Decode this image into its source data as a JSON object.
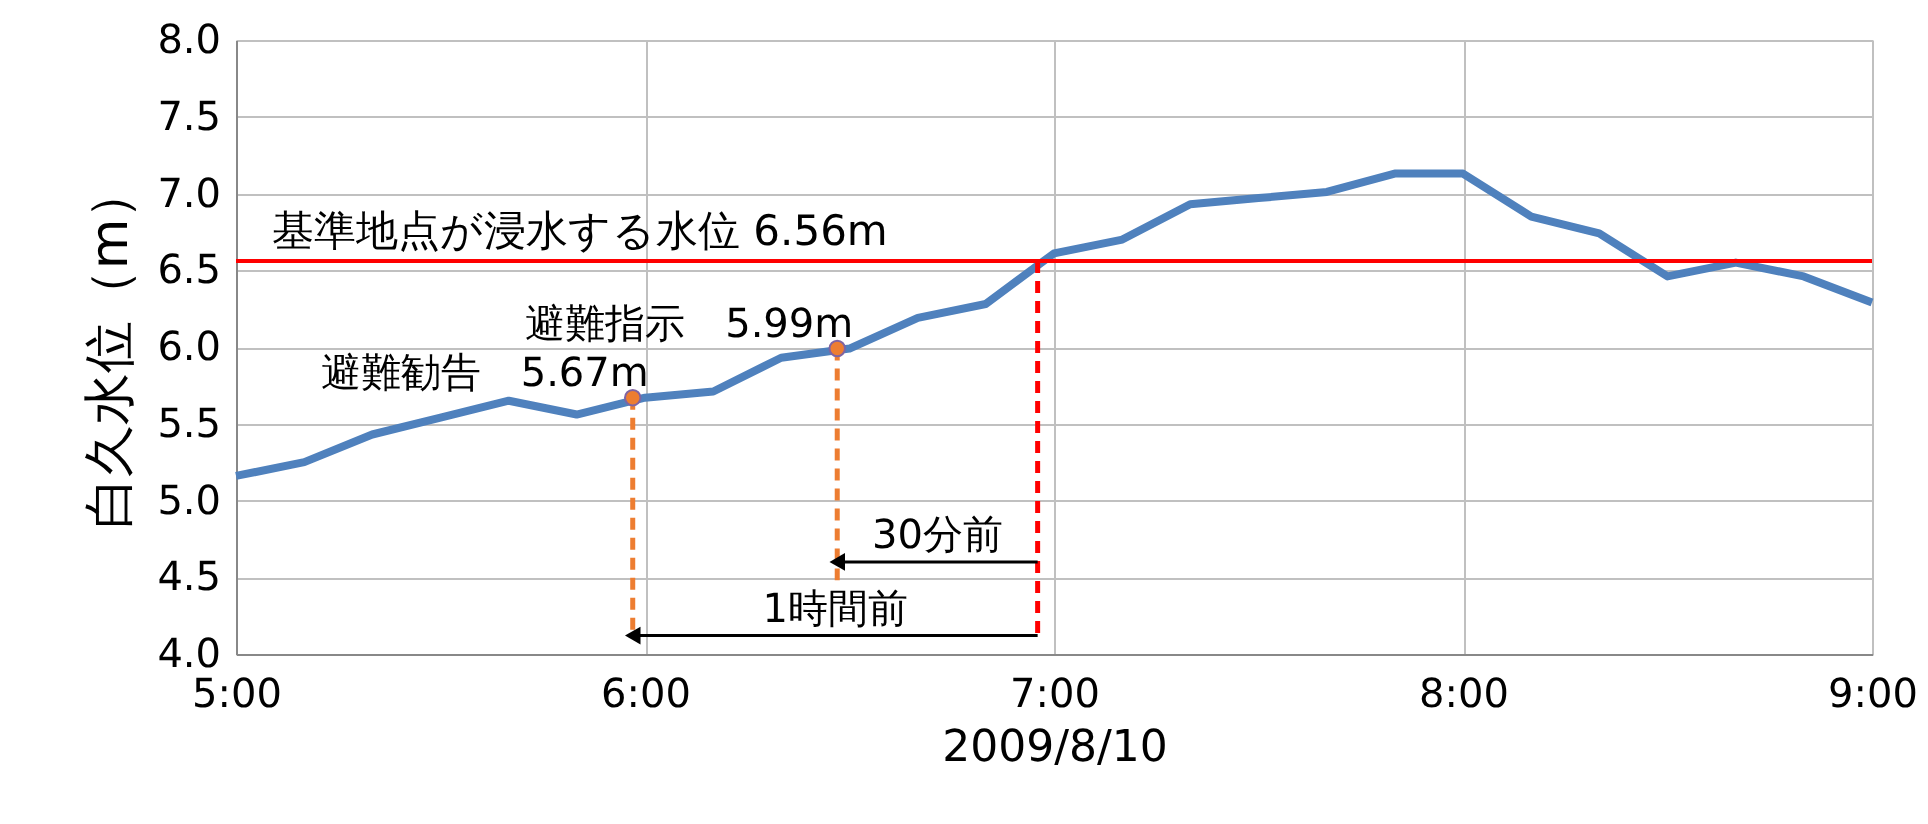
{
  "chart_data": {
    "type": "line",
    "xlabel": "2009/8/10",
    "ylabel": "白久水位（m）",
    "xlim": [
      5,
      9
    ],
    "xticks": [
      {
        "value": 5,
        "label": "5:00"
      },
      {
        "value": 6,
        "label": "6:00"
      },
      {
        "value": 7,
        "label": "7:00"
      },
      {
        "value": 8,
        "label": "8:00"
      },
      {
        "value": 9,
        "label": "9:00"
      }
    ],
    "ylim": [
      4,
      8
    ],
    "yticks": [
      {
        "value": 4,
        "label": "4.0"
      },
      {
        "value": 4.5,
        "label": "4.5"
      },
      {
        "value": 5,
        "label": "5.0"
      },
      {
        "value": 5.5,
        "label": "5.5"
      },
      {
        "value": 6,
        "label": "6.0"
      },
      {
        "value": 6.5,
        "label": "6.5"
      },
      {
        "value": 7,
        "label": "7.0"
      },
      {
        "value": 7.5,
        "label": "7.5"
      },
      {
        "value": 8,
        "label": "8.0"
      }
    ],
    "grid": true,
    "series": [
      {
        "color": "#4f81bd",
        "x": [
          5,
          5.167,
          5.333,
          5.5,
          5.667,
          5.833,
          6,
          6.167,
          6.333,
          6.5,
          6.667,
          6.833,
          7,
          7.167,
          7.333,
          7.5,
          7.667,
          7.833,
          8,
          8.167,
          8.333,
          8.5,
          8.667,
          8.833,
          9
        ],
        "values": [
          5.16,
          5.25,
          5.43,
          5.54,
          5.65,
          5.56,
          5.67,
          5.71,
          5.93,
          5.99,
          6.19,
          6.28,
          6.61,
          6.7,
          6.93,
          6.97,
          7.01,
          7.13,
          7.13,
          6.85,
          6.74,
          6.46,
          6.55,
          6.46,
          6.29
        ]
      },
      {
        "type": "line",
        "line_style": "dashed",
        "color": "#ed7d31",
        "x": [
          5.97,
          5.97
        ],
        "values": [
          5.67,
          4.12
        ]
      },
      {
        "type": "line",
        "line_style": "dashed",
        "color": "#ed7d31",
        "x": [
          6.47,
          6.47
        ],
        "values": [
          5.99,
          4.48
        ]
      },
      {
        "type": "line",
        "line_style": "dashed",
        "color": "#ff0000",
        "x": [
          6.96,
          6.96
        ],
        "values": [
          6.56,
          4.12
        ]
      },
      {
        "type": "line",
        "marker": "triangle",
        "color": "#000000",
        "x": [
          6.96,
          6.47
        ],
        "values": [
          4.6,
          4.6
        ]
      },
      {
        "type": "line",
        "marker": "triangle",
        "color": "#000000",
        "x": [
          6.96,
          5.97
        ],
        "values": [
          4.12,
          4.12
        ]
      },
      {
        "type": "scatter",
        "marker": "circle",
        "color": "#ed7d31",
        "x": [
          5.97,
          6.47
        ],
        "values": [
          5.67,
          5.99
        ]
      }
    ],
    "ref_lines": [
      {
        "axis": "y",
        "value": 6.56,
        "label": "基準地点が浸水する水位 6.56m",
        "color": "#ff0000"
      }
    ],
    "annotations": [
      {
        "text": "避難勧告　5.67m",
        "x": 5.97,
        "y": 5.67
      },
      {
        "text": "避難指示　5.99m",
        "x": 6.47,
        "y": 5.99
      },
      "30分前",
      "1時間前"
    ]
  }
}
